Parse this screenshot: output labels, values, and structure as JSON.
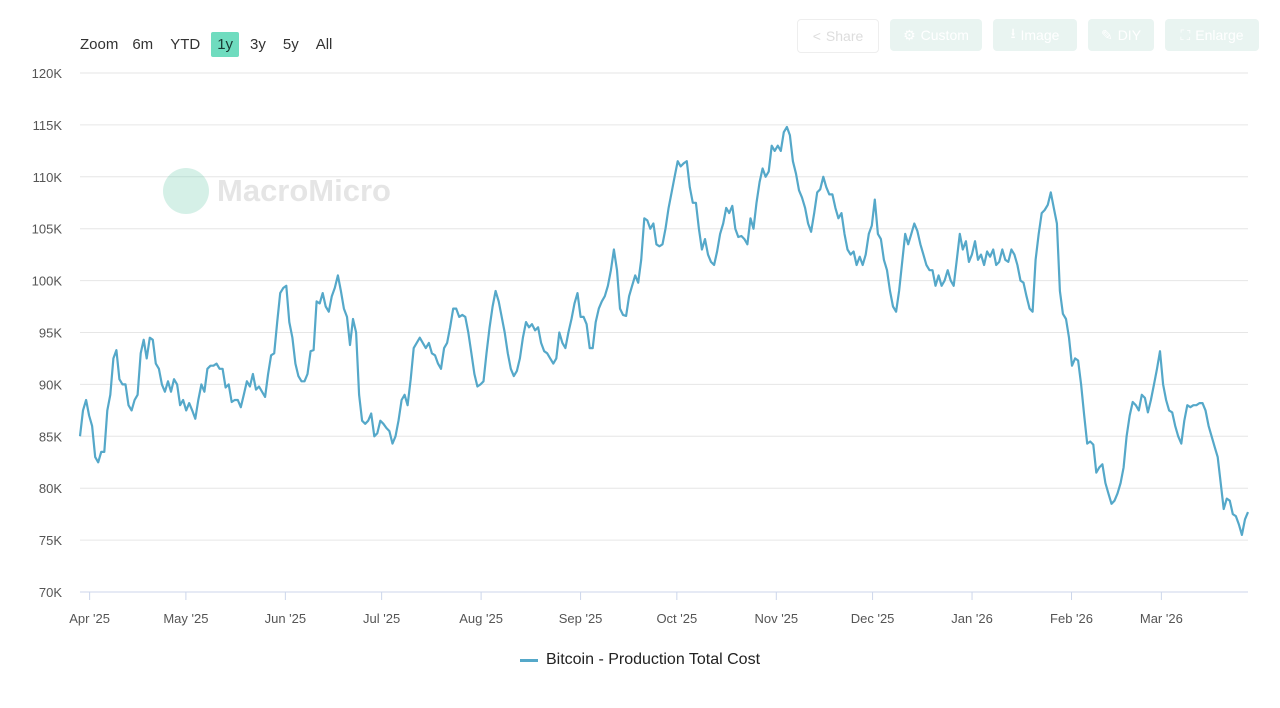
{
  "zoom": {
    "label": "Zoom",
    "options": [
      "6m",
      "YTD",
      "1y",
      "3y",
      "5y",
      "All"
    ],
    "selected": "1y",
    "selected_color": "#6fdcbf"
  },
  "toolbar": {
    "share": "Share",
    "custom": "Custom",
    "image": "Image",
    "diy": "DIY",
    "enlarge": "Enlarge"
  },
  "watermark": "MacroMicro",
  "chart_data": {
    "type": "line",
    "title": "",
    "xlabel": "",
    "ylabel": "",
    "ylim": [
      70000,
      120000
    ],
    "yticks": [
      70000,
      75000,
      80000,
      85000,
      90000,
      95000,
      100000,
      105000,
      110000,
      115000,
      120000
    ],
    "ytick_labels": [
      "70K",
      "75K",
      "80K",
      "85K",
      "90K",
      "95K",
      "100K",
      "105K",
      "110K",
      "115K",
      "120K"
    ],
    "xticks": [
      {
        "date": "2025-04-01",
        "label": "Apr '25"
      },
      {
        "date": "2025-05-01",
        "label": "May '25"
      },
      {
        "date": "2025-06-01",
        "label": "Jun '25"
      },
      {
        "date": "2025-07-01",
        "label": "Jul '25"
      },
      {
        "date": "2025-08-01",
        "label": "Aug '25"
      },
      {
        "date": "2025-09-01",
        "label": "Sep '25"
      },
      {
        "date": "2025-10-01",
        "label": "Oct '25"
      },
      {
        "date": "2025-11-01",
        "label": "Nov '25"
      },
      {
        "date": "2025-12-01",
        "label": "Dec '25"
      },
      {
        "date": "2026-01-01",
        "label": "Jan '26"
      },
      {
        "date": "2026-02-01",
        "label": "Feb '26"
      },
      {
        "date": "2026-03-01",
        "label": "Mar '26"
      }
    ],
    "grid": true,
    "legend_position": "bottom",
    "series": [
      {
        "name": "Bitcoin - Production Total Cost",
        "color": "#55a8c9",
        "start": "2025-03-29",
        "end": "2026-03-28",
        "values": [
          85,
          87.5,
          88.5,
          87,
          86,
          83,
          82.5,
          83.5,
          83.5,
          87.5,
          89,
          92.5,
          93.3,
          90.5,
          90,
          90,
          88,
          87.5,
          88.5,
          89,
          93,
          94.3,
          92.5,
          94.5,
          94.3,
          92,
          91.5,
          90,
          89.3,
          90.3,
          89.3,
          90.5,
          90,
          88,
          88.5,
          87.5,
          88.2,
          87.5,
          86.7,
          88.5,
          90,
          89.3,
          91.5,
          91.8,
          91.8,
          92,
          91.5,
          91.5,
          89.7,
          90,
          88.3,
          88.5,
          88.5,
          87.8,
          89,
          90.3,
          89.8,
          91,
          89.5,
          89.8,
          89.3,
          88.8,
          91,
          92.8,
          93,
          96,
          98.8,
          99.3,
          99.5,
          96,
          94.5,
          92,
          90.8,
          90.3,
          90.3,
          91,
          93.2,
          93.3,
          98,
          97.8,
          98.8,
          97.5,
          97,
          98.5,
          99.3,
          100.5,
          99,
          97.3,
          96.5,
          93.8,
          96.3,
          95,
          89,
          86.5,
          86.2,
          86.5,
          87.2,
          85,
          85.3,
          86.5,
          86.2,
          85.8,
          85.5,
          84.3,
          85,
          86.5,
          88.5,
          89,
          88,
          90.5,
          93.5,
          94,
          94.5,
          94,
          93.5,
          94,
          93,
          92.8,
          92,
          91.5,
          93.5,
          94,
          95.5,
          97.3,
          97.3,
          96.5,
          96.7,
          96.5,
          95,
          93,
          91,
          89.8,
          90,
          90.3,
          93,
          95.5,
          97.5,
          99,
          98,
          96.5,
          95,
          93,
          91.5,
          90.8,
          91.3,
          92.5,
          94.5,
          96,
          95.5,
          95.8,
          95.2,
          95.5,
          94,
          93.2,
          93,
          92.5,
          92,
          92.5,
          95,
          94,
          93.5,
          95,
          96.3,
          97.8,
          98.8,
          96.5,
          96.5,
          95.8,
          93.5,
          93.5,
          96,
          97.3,
          98,
          98.5,
          99.5,
          101,
          103,
          101,
          97.3,
          96.7,
          96.6,
          98.5,
          99.5,
          100.5,
          99.8,
          102,
          106,
          105.8,
          105,
          105.5,
          103.5,
          103.3,
          103.5,
          105,
          107,
          108.5,
          110,
          111.5,
          111,
          111.3,
          111.5,
          109,
          107.5,
          107.5,
          105,
          103,
          104,
          102.5,
          101.8,
          101.5,
          102.8,
          104.5,
          105.5,
          107,
          106.5,
          107.2,
          105,
          104.2,
          104.3,
          104,
          103.5,
          106,
          105,
          107.5,
          109.5,
          110.8,
          110,
          110.5,
          113,
          112.5,
          113,
          112.5,
          114.3,
          114.8,
          114,
          111.5,
          110.3,
          108.7,
          108,
          107,
          105.5,
          104.7,
          106.5,
          108.5,
          108.8,
          110,
          109,
          108.3,
          108.3,
          107,
          106,
          106.5,
          104.5,
          103,
          102.5,
          102.8,
          101.5,
          102.3,
          101.5,
          102.5,
          104.5,
          105.3,
          107.8,
          104.5,
          104,
          102,
          101,
          99,
          97.5,
          97,
          99,
          101.8,
          104.5,
          103.5,
          104.5,
          105.5,
          104.8,
          103.5,
          102.5,
          101.5,
          101,
          101,
          99.5,
          100.5,
          99.5,
          100,
          101,
          100,
          99.5,
          102,
          104.5,
          103,
          103.8,
          101.8,
          102.5,
          103.8,
          102,
          102.5,
          101.5,
          102.8,
          102.3,
          103,
          101.5,
          101.8,
          103,
          102,
          101.8,
          103,
          102.5,
          101.5,
          100,
          99.8,
          98.5,
          97.3,
          97,
          102,
          104.5,
          106.5,
          106.8,
          107.3,
          108.5,
          107,
          105.5,
          99,
          96.8,
          96.3,
          94.5,
          91.8,
          92.5,
          92.3,
          90,
          87,
          84.3,
          84.5,
          84.2,
          81.5,
          82,
          82.3,
          80.5,
          79.5,
          78.5,
          78.8,
          79.5,
          80.5,
          82,
          85,
          87,
          88.3,
          88,
          87.5,
          89,
          88.7,
          87.3,
          88.5,
          90,
          91.5,
          93.2,
          90,
          88.5,
          87.5,
          87.3,
          86,
          85,
          84.3,
          86.5,
          88,
          87.8,
          88,
          88,
          88.2,
          88.2,
          87.5,
          86,
          85,
          84,
          83,
          80.5,
          78,
          79,
          78.8,
          77.5,
          77.3,
          76.5,
          75.5,
          77,
          77.7
        ],
        "value_unit": "K"
      }
    ]
  }
}
